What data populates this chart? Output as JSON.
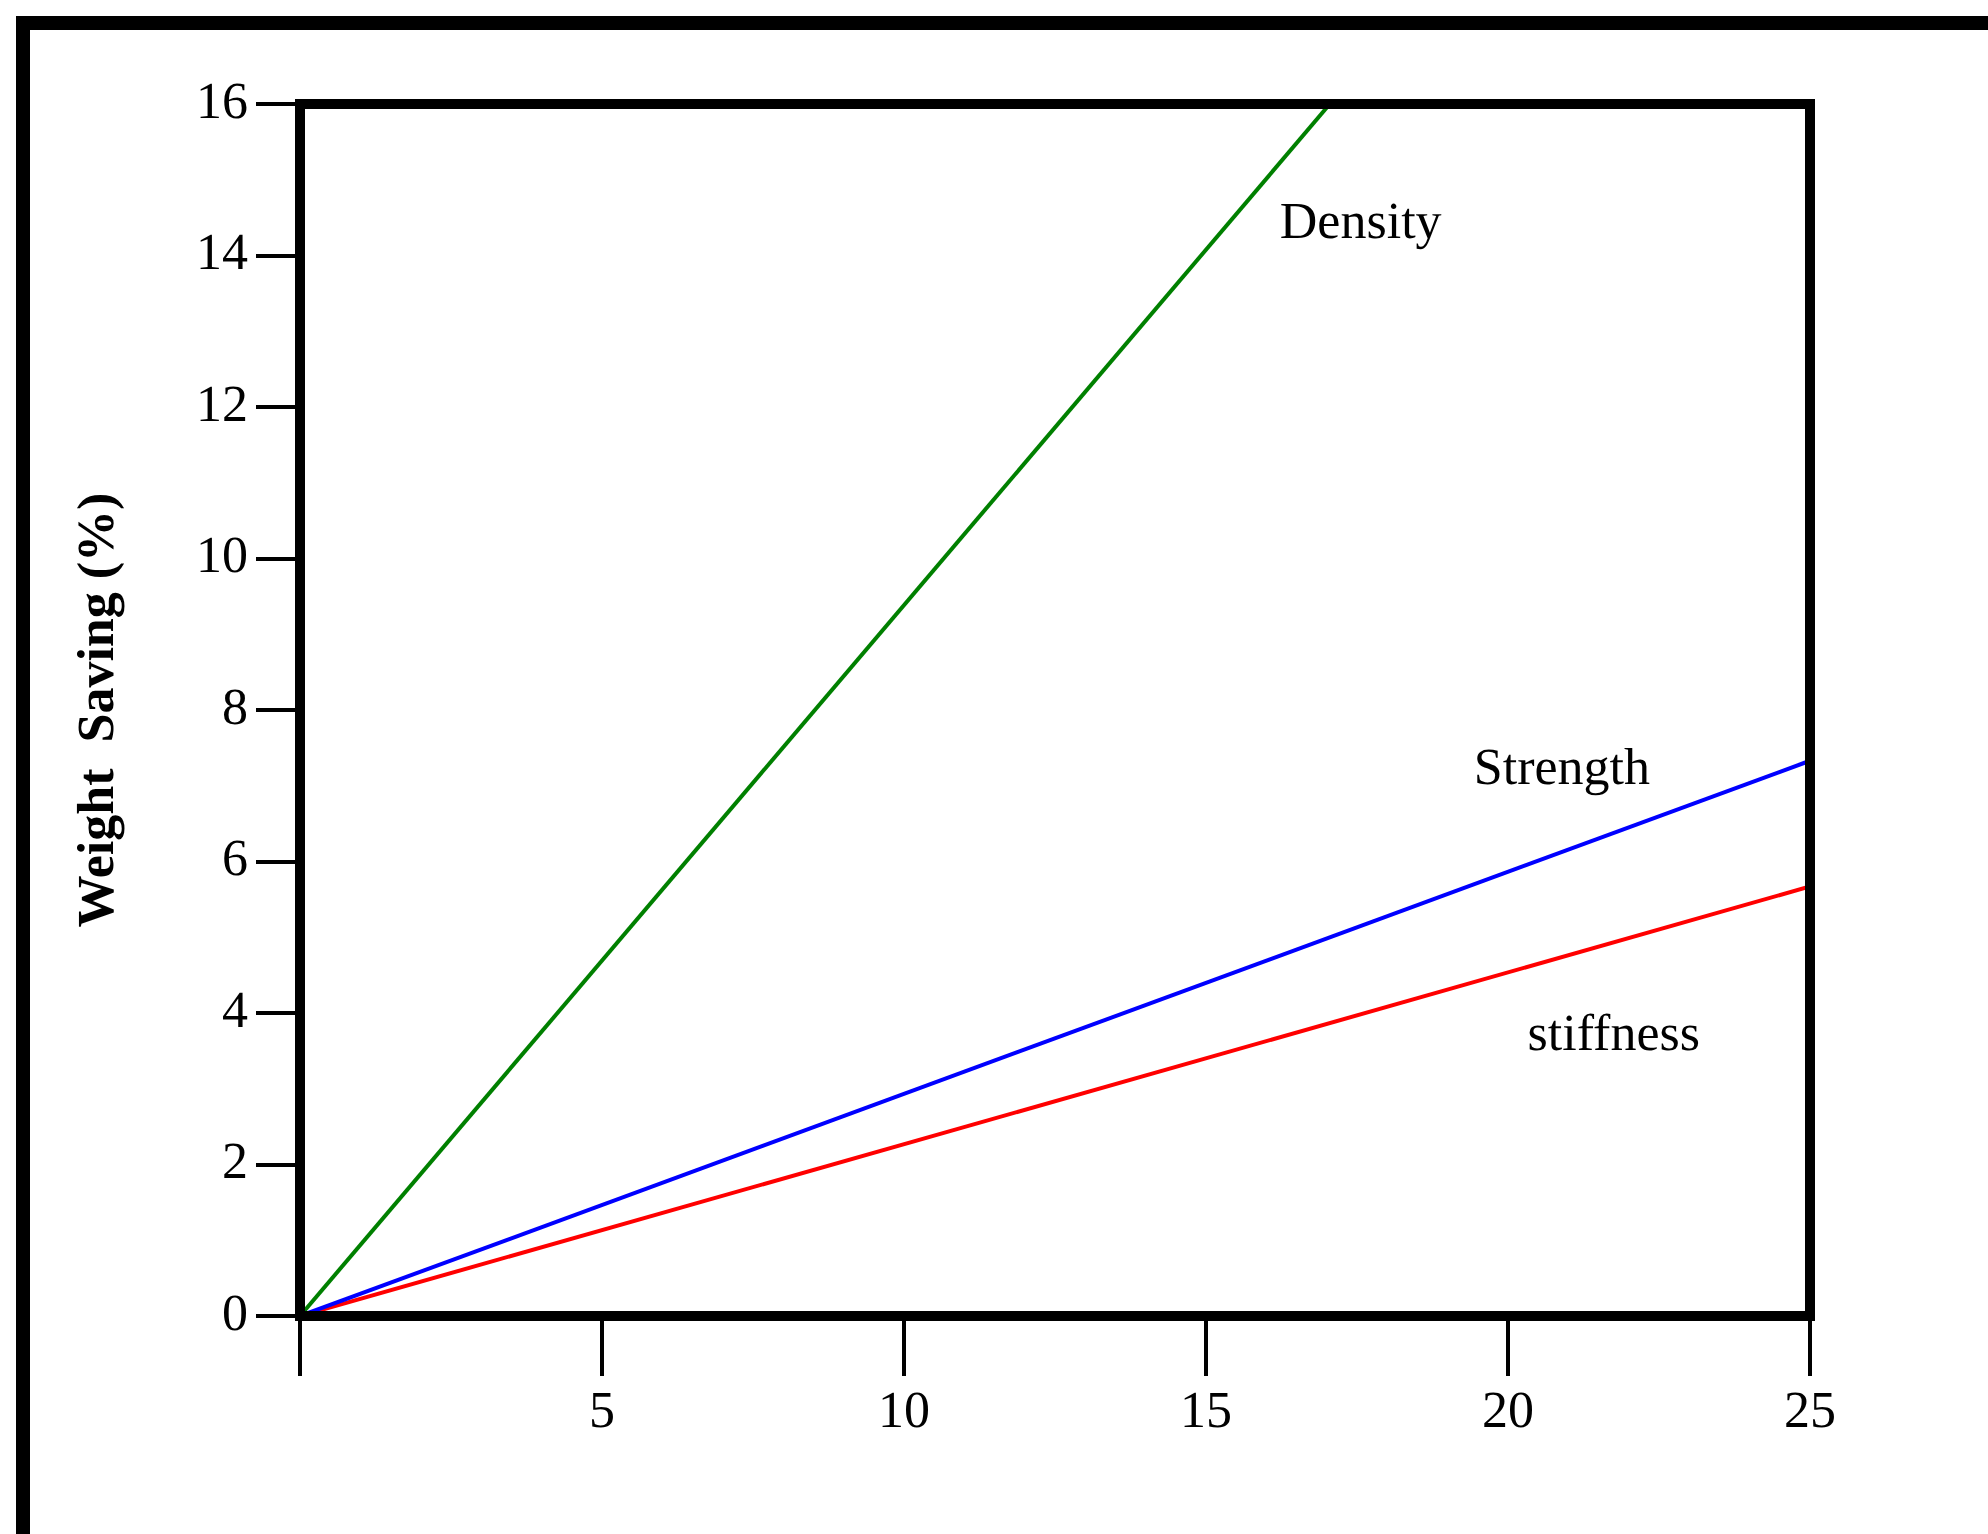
{
  "chart_data": {
    "type": "line",
    "ylabel": "Weight  Saving (%)",
    "xlim": [
      0,
      25
    ],
    "ylim": [
      0,
      16
    ],
    "xticks": [
      {
        "value": 0,
        "label": null
      },
      5,
      10,
      15,
      20,
      25
    ],
    "yticks": [
      0,
      2,
      4,
      6,
      8,
      10,
      12,
      14,
      16
    ],
    "grid": false,
    "legend": false,
    "marker": "none",
    "line_style": "solid",
    "series": [
      {
        "name": "Density",
        "color": "#008000",
        "x": [
          0,
          17.05
        ],
        "values": [
          0,
          16
        ]
      },
      {
        "name": "Strength",
        "color": "#0000ff",
        "x": [
          0,
          25
        ],
        "values": [
          0,
          7.33
        ]
      },
      {
        "name": "stiffness",
        "color": "#ff0000",
        "x": [
          0,
          25
        ],
        "values": [
          0,
          5.67
        ]
      }
    ]
  }
}
